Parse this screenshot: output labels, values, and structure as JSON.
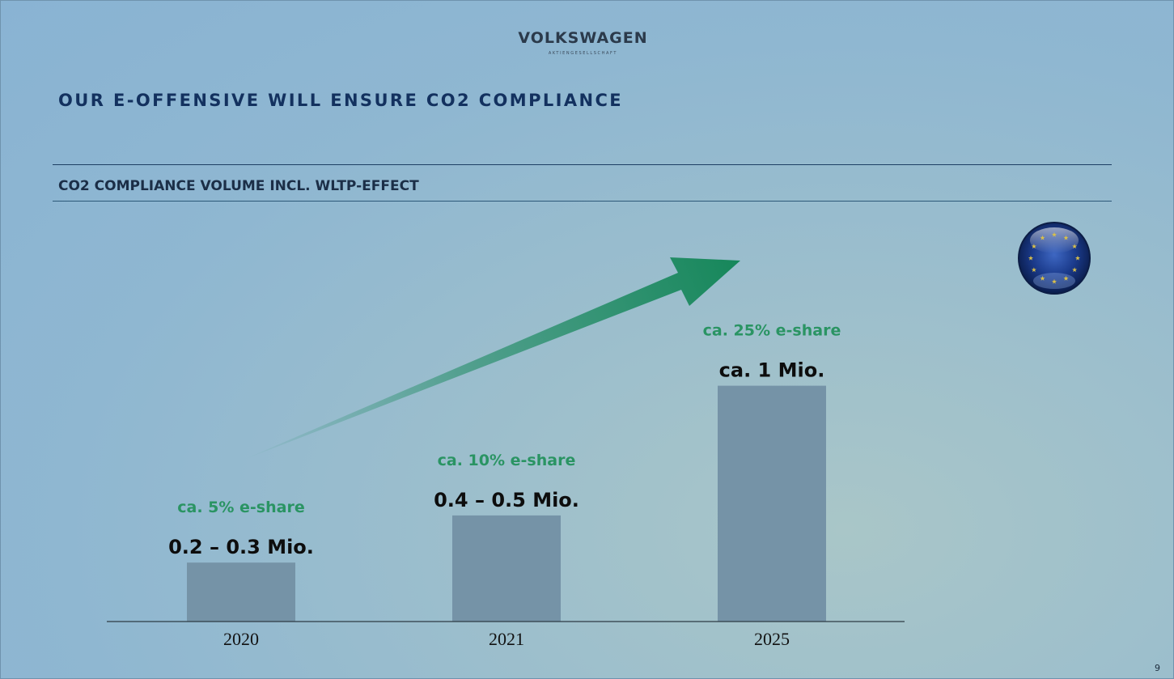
{
  "header": {
    "brand_name": "VOLKSWAGEN",
    "brand_subtitle": "AKTIENGESELLSCHAFT",
    "title": "OUR E-OFFENSIVE WILL ENSURE CO2 COMPLIANCE",
    "subtitle": "CO2 COMPLIANCE VOLUME INCL. WLTP-EFFECT"
  },
  "footer": {
    "page_number": "9"
  },
  "colors": {
    "bar": "#7593a7",
    "eshare_text": "#2a9463",
    "arrow": "#16875a",
    "title": "#13315f",
    "flag_blue": "#1b3b8c",
    "flag_star": "#d9c04a"
  },
  "icons": {
    "eu_flag": "eu-flag-sphere-icon",
    "arrow": "growth-arrow-icon"
  },
  "chart_data": {
    "type": "bar",
    "title": "CO2 COMPLIANCE VOLUME INCL. WLTP-EFFECT",
    "categories": [
      "2020",
      "2021",
      "2025"
    ],
    "values": [
      0.25,
      0.45,
      1.0
    ],
    "value_labels": [
      "0.2 – 0.3 Mio.",
      "0.4 – 0.5 Mio.",
      "ca. 1 Mio."
    ],
    "eshare_labels": [
      "ca. 5% e-share",
      "ca. 10% e-share",
      "ca. 25% e-share"
    ],
    "xlabel": "",
    "ylabel": "",
    "ylim": [
      0,
      1.16
    ],
    "grid": false,
    "legend": "none"
  }
}
